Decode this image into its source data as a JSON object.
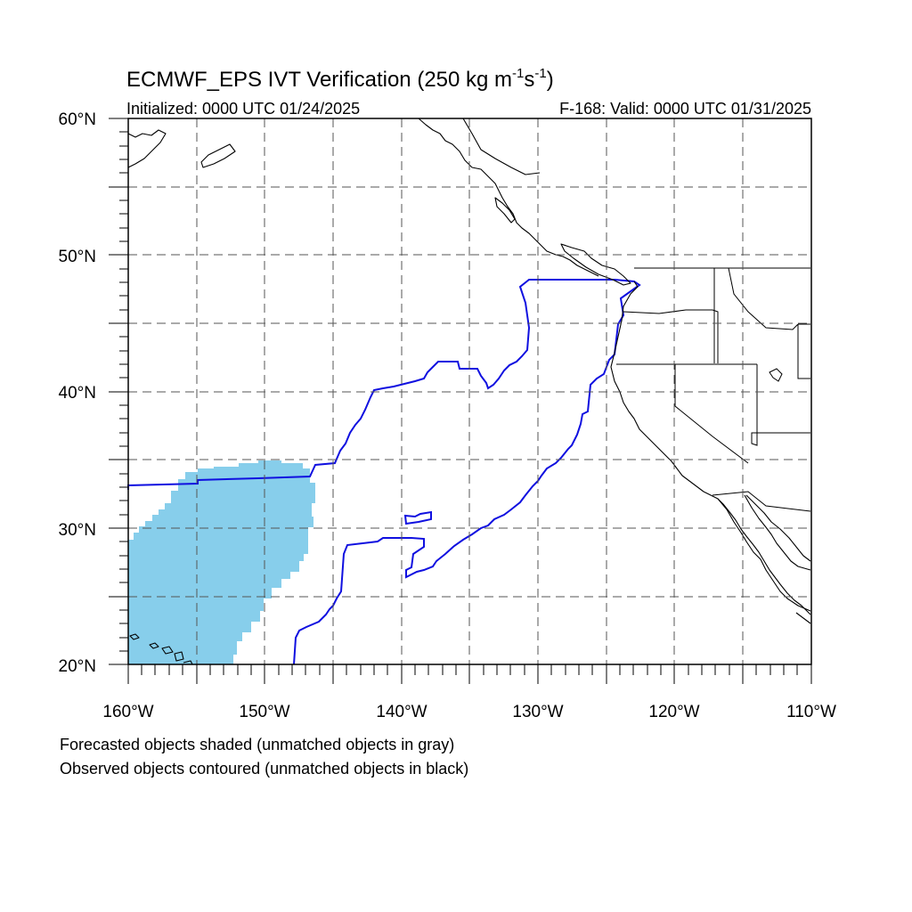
{
  "title": {
    "main": "ECMWF_EPS IVT Verification (250 kg m",
    "exp1": "-1",
    "mid": "s",
    "exp2": "-1",
    "close": ")"
  },
  "init_text": "Initialized: 0000 UTC 01/24/2025",
  "valid_text": "F-168: Valid: 0000 UTC 01/31/2025",
  "lat_labels": [
    "60°N",
    "50°N",
    "40°N",
    "30°N",
    "20°N"
  ],
  "lon_labels": [
    "160°W",
    "150°W",
    "140°W",
    "130°W",
    "120°W",
    "110°W"
  ],
  "notes": [
    "Forecasted objects shaded (unmatched objects in gray)",
    "Observed objects contoured (unmatched objects in black)"
  ],
  "colors": {
    "forecast_fill": "#87ceeb",
    "observed_contour": "#1010e0",
    "coast": "#000000",
    "grid": "#555555"
  },
  "map_extent": {
    "lon": [
      -160,
      -110
    ],
    "lat": [
      20,
      60
    ]
  }
}
